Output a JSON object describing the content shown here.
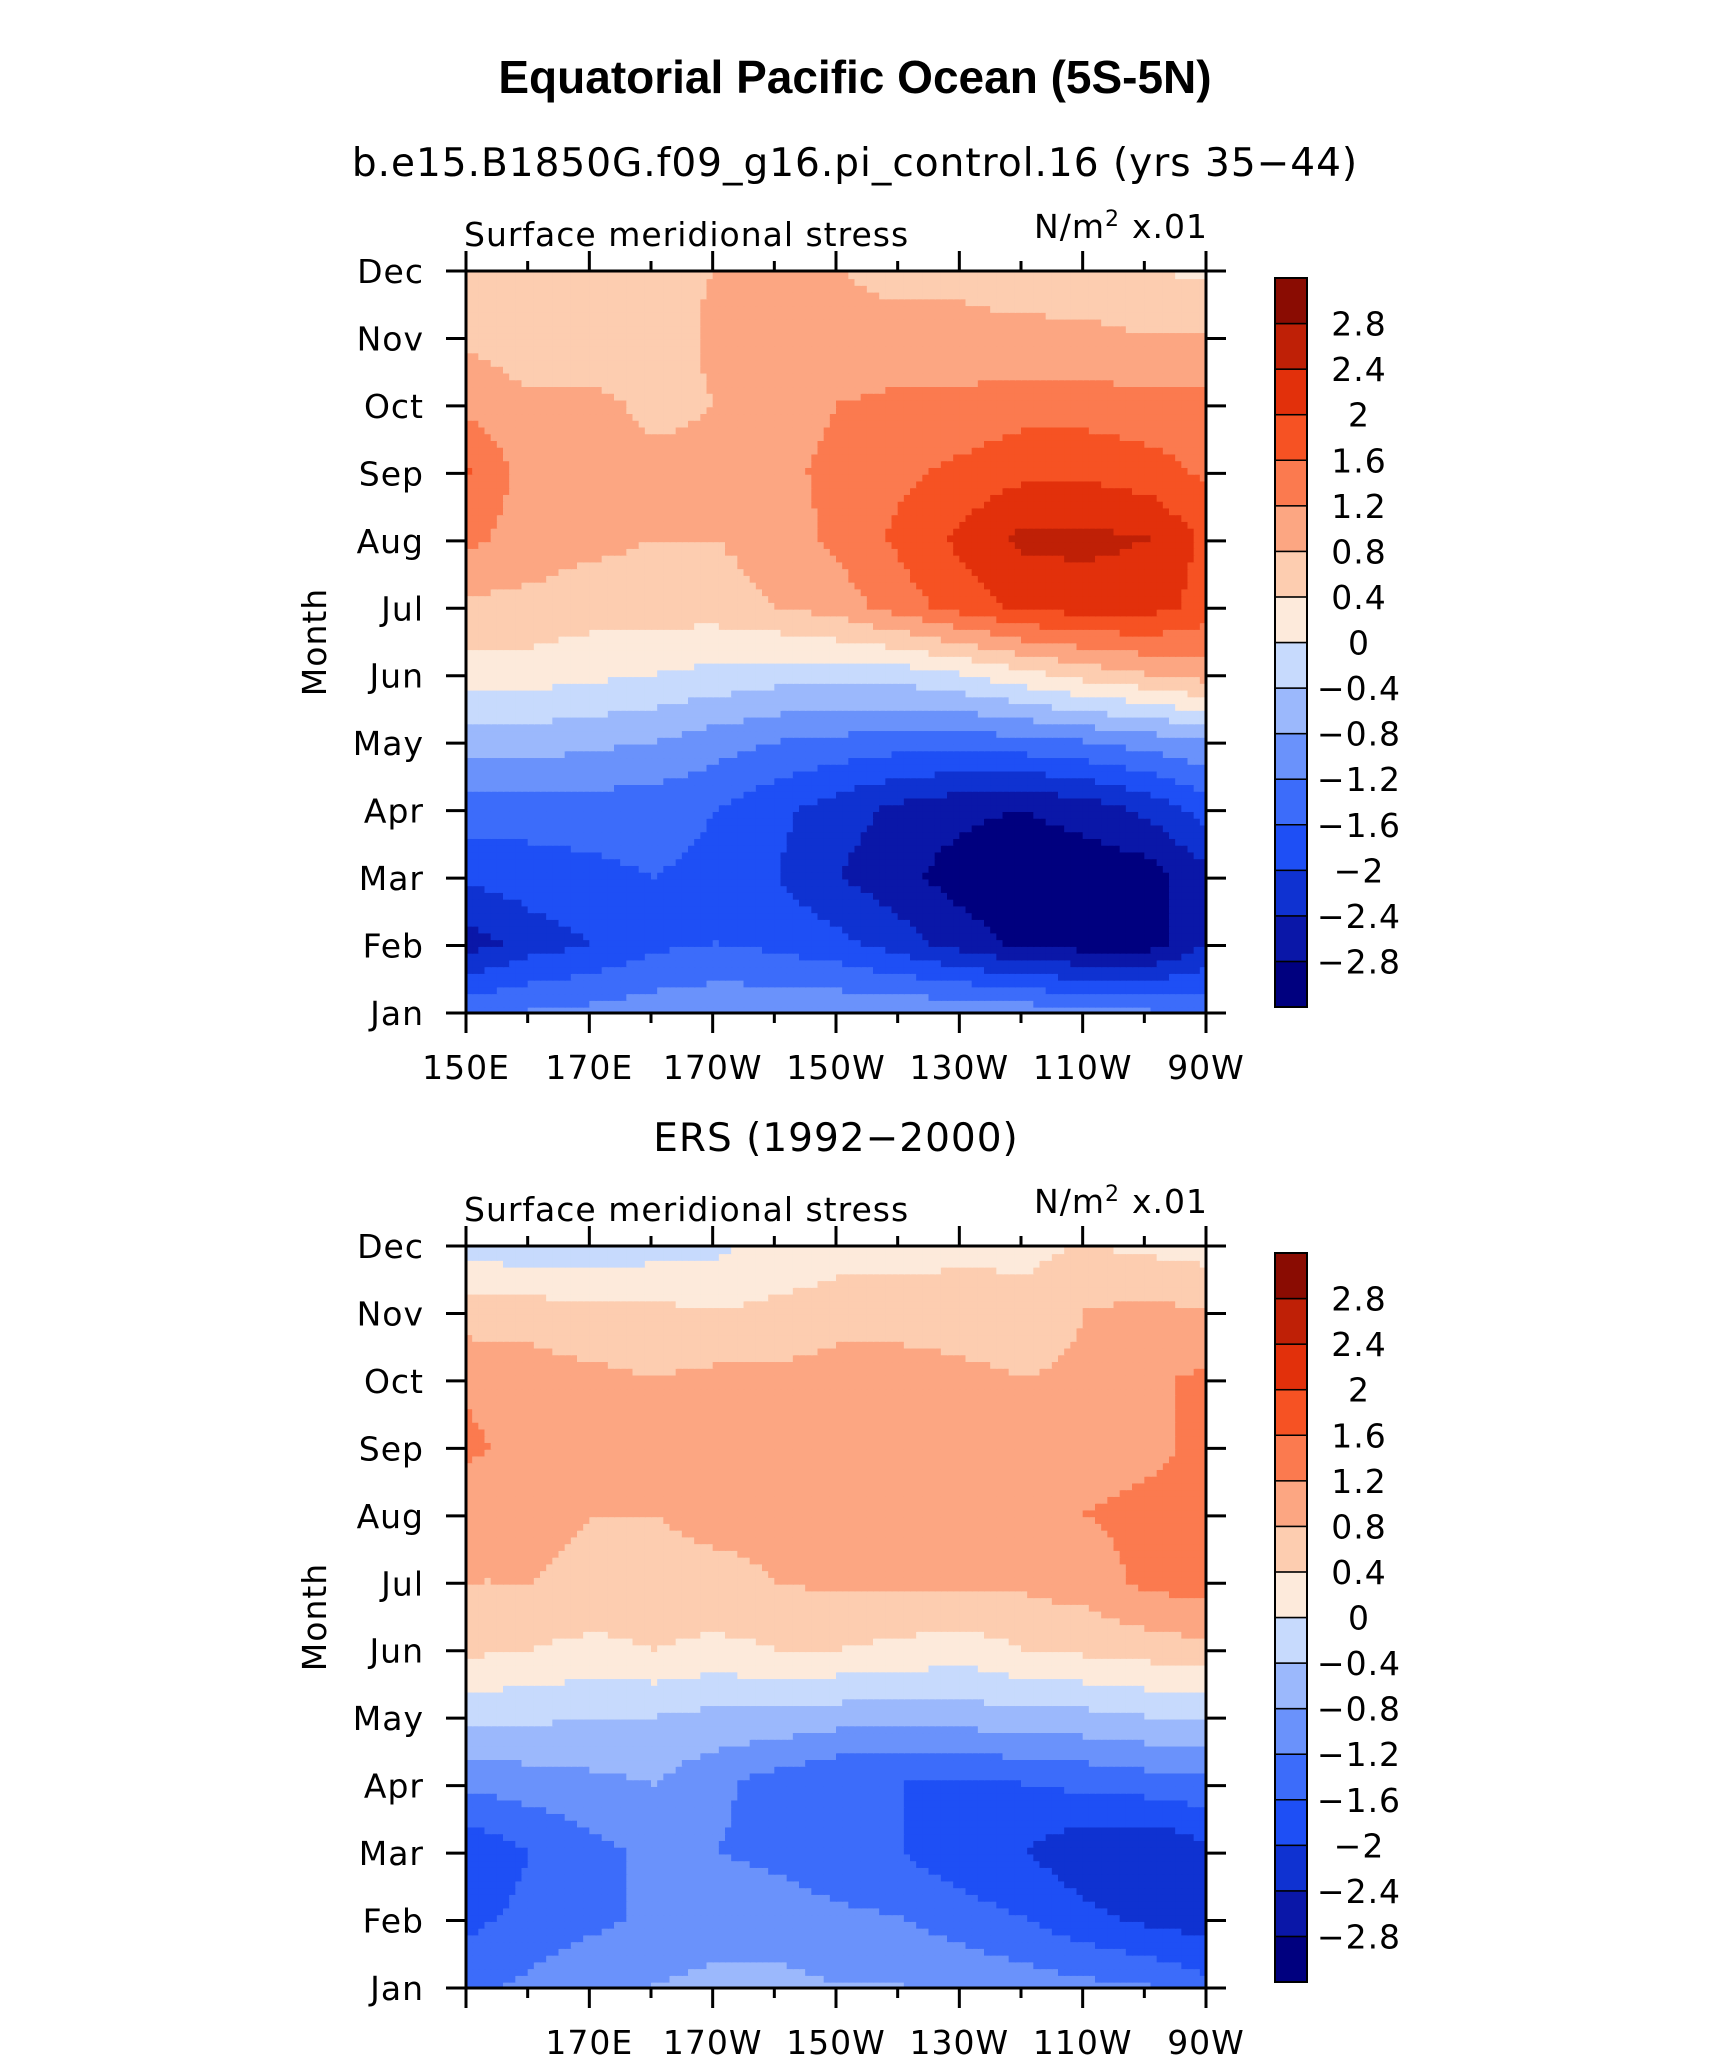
{
  "title": "Equatorial Pacific Ocean (5S-5N)",
  "colorbar": {
    "colors": [
      "#00007f",
      "#0a17a8",
      "#0f32d1",
      "#1e4ff5",
      "#3c6cfa",
      "#6a92fb",
      "#9bb8fc",
      "#c7dafd",
      "#fdeadb",
      "#fdcdb0",
      "#fca682",
      "#fb7a4f",
      "#f65223",
      "#e2300b",
      "#bf2006",
      "#8a0c02"
    ],
    "labels": [
      "-2.8",
      "-2.4",
      "-2",
      "-1.6",
      "-1.2",
      "-0.8",
      "-0.4",
      "0",
      "0.4",
      "0.8",
      "1.2",
      "1.6",
      "2",
      "2.4",
      "2.8"
    ]
  },
  "panels": [
    {
      "subtitle": "b.e15.B1850G.f09_g16.pi_control.16 (yrs 35−44)",
      "left_label": "Surface meridional stress",
      "units_base": "N/m",
      "units_exp": "2",
      "units_scale": "x.01",
      "ylabel": "Month",
      "xtick_labels": [
        "150E",
        "170E",
        "170W",
        "150W",
        "130W",
        "110W",
        "90W"
      ]
    },
    {
      "subtitle": "ERS (1992−2000)",
      "left_label": "Surface meridional stress",
      "units_base": "N/m",
      "units_exp": "2",
      "units_scale": "x.01",
      "ylabel": "Month",
      "xtick_labels": [
        "",
        "170E",
        "170W",
        "150W",
        "130W",
        "110W",
        "90W"
      ]
    }
  ],
  "chart_data": [
    {
      "type": "heatmap",
      "title": "Equatorial Pacific Ocean (5S-5N)",
      "subtitle": "b.e15.B1850G.f09_g16.pi_control.16 (yrs 35−44)",
      "xlabel": "",
      "ylabel": "Month",
      "x_ticks": [
        "150E",
        "170E",
        "170W",
        "150W",
        "130W",
        "110W",
        "90W"
      ],
      "x": [
        150,
        160,
        170,
        180,
        190,
        200,
        210,
        220,
        230,
        240,
        250,
        260,
        270
      ],
      "y": [
        "Jan",
        "Feb",
        "Mar",
        "Apr",
        "May",
        "Jun",
        "Jul",
        "Aug",
        "Sep",
        "Oct",
        "Nov",
        "Dec"
      ],
      "levels": [
        -2.8,
        -2.4,
        -2,
        -1.6,
        -1.2,
        -0.8,
        -0.4,
        0,
        0.4,
        0.8,
        1.2,
        1.6,
        2,
        2.4,
        2.8
      ],
      "z": [
        [
          -1.3,
          -1.2,
          -1.1,
          -1.0,
          -0.9,
          -0.9,
          -0.9,
          -0.9,
          -0.9,
          -1.0,
          -1.1,
          -1.2,
          -1.3
        ],
        [
          -2.6,
          -2.2,
          -2.0,
          -1.7,
          -1.6,
          -1.7,
          -1.9,
          -2.2,
          -2.6,
          -2.9,
          -3.0,
          -3.0,
          -2.4
        ],
        [
          -1.9,
          -1.8,
          -1.7,
          -1.6,
          -1.7,
          -2.0,
          -2.4,
          -2.7,
          -3.0,
          -3.1,
          -3.1,
          -3.0,
          -2.5
        ],
        [
          -1.4,
          -1.4,
          -1.4,
          -1.4,
          -1.6,
          -1.9,
          -2.2,
          -2.5,
          -2.7,
          -2.8,
          -2.6,
          -2.3,
          -1.8
        ],
        [
          -0.6,
          -0.6,
          -0.7,
          -0.8,
          -1.0,
          -1.2,
          -1.3,
          -1.4,
          -1.4,
          -1.3,
          -1.2,
          -1.0,
          -0.8
        ],
        [
          0.2,
          0.2,
          0.1,
          0.0,
          -0.1,
          -0.2,
          -0.2,
          -0.2,
          0.0,
          0.3,
          0.6,
          0.8,
          1.0
        ],
        [
          0.7,
          0.7,
          0.6,
          0.6,
          0.6,
          0.8,
          1.0,
          1.4,
          1.8,
          2.1,
          2.2,
          2.2,
          1.8
        ],
        [
          1.3,
          1.0,
          0.9,
          0.8,
          0.8,
          1.0,
          1.3,
          1.7,
          2.1,
          2.5,
          2.5,
          2.4,
          1.9
        ],
        [
          1.6,
          1.0,
          0.9,
          0.9,
          0.9,
          1.1,
          1.3,
          1.5,
          1.7,
          1.9,
          1.9,
          1.8,
          1.5
        ],
        [
          1.1,
          0.9,
          0.9,
          0.7,
          0.8,
          1.0,
          1.2,
          1.3,
          1.3,
          1.4,
          1.4,
          1.3,
          1.3
        ],
        [
          0.7,
          0.5,
          0.5,
          0.5,
          0.9,
          0.9,
          0.9,
          0.9,
          0.9,
          0.9,
          0.9,
          0.8,
          0.8
        ],
        [
          0.4,
          0.6,
          0.6,
          0.7,
          0.8,
          0.8,
          0.8,
          0.7,
          0.7,
          0.6,
          0.5,
          0.4,
          0.3
        ]
      ]
    },
    {
      "type": "heatmap",
      "title": "",
      "subtitle": "ERS (1992−2000)",
      "xlabel": "",
      "ylabel": "Month",
      "x_ticks": [
        "170E",
        "170W",
        "150W",
        "130W",
        "110W",
        "90W"
      ],
      "x": [
        150,
        160,
        170,
        180,
        190,
        200,
        210,
        220,
        230,
        240,
        250,
        260,
        270
      ],
      "y": [
        "Jan",
        "Feb",
        "Mar",
        "Apr",
        "May",
        "Jun",
        "Jul",
        "Aug",
        "Sep",
        "Oct",
        "Nov",
        "Dec"
      ],
      "levels": [
        -2.8,
        -2.4,
        -2,
        -1.6,
        -1.2,
        -0.8,
        -0.4,
        0,
        0.4,
        0.8,
        1.2,
        1.6,
        2,
        2.4,
        2.8
      ],
      "z": [
        [
          -1.3,
          -1.1,
          -0.9,
          -0.8,
          -0.7,
          -0.7,
          -0.8,
          -0.8,
          -0.9,
          -1.0,
          -1.1,
          -1.2,
          -1.5
        ],
        [
          -1.7,
          -1.5,
          -1.3,
          -1.1,
          -1.0,
          -1.0,
          -1.1,
          -1.2,
          -1.4,
          -1.6,
          -1.9,
          -2.1,
          -2.2
        ],
        [
          -1.9,
          -1.6,
          -1.3,
          -1.1,
          -1.2,
          -1.3,
          -1.5,
          -1.6,
          -1.9,
          -2.0,
          -2.3,
          -2.4,
          -2.1
        ],
        [
          -1.1,
          -1.0,
          -0.9,
          -0.8,
          -1.1,
          -1.4,
          -1.6,
          -1.6,
          -1.7,
          -1.6,
          -1.5,
          -1.4,
          -1.3
        ],
        [
          -0.3,
          -0.3,
          -0.4,
          -0.4,
          -0.5,
          -0.5,
          -0.6,
          -0.6,
          -0.6,
          -0.5,
          -0.5,
          -0.4,
          -0.3
        ],
        [
          0.5,
          0.4,
          0.3,
          0.4,
          0.3,
          0.4,
          0.4,
          0.3,
          0.2,
          0.4,
          0.5,
          0.6,
          0.7
        ],
        [
          0.8,
          0.8,
          0.7,
          0.7,
          0.7,
          0.8,
          0.9,
          0.9,
          0.9,
          0.9,
          1.0,
          1.3,
          1.4
        ],
        [
          0.9,
          0.9,
          0.8,
          0.8,
          0.9,
          0.9,
          1.0,
          1.0,
          1.0,
          1.0,
          1.2,
          1.3,
          1.4
        ],
        [
          1.3,
          1.0,
          0.8,
          0.9,
          1.0,
          1.0,
          1.0,
          0.9,
          0.8,
          0.9,
          1.0,
          1.1,
          1.3
        ],
        [
          1.1,
          1.0,
          0.9,
          0.8,
          0.9,
          0.9,
          1.0,
          1.0,
          0.9,
          0.8,
          0.9,
          1.1,
          1.3
        ],
        [
          0.6,
          0.6,
          0.5,
          0.5,
          0.4,
          0.5,
          0.6,
          0.6,
          0.6,
          0.5,
          0.8,
          0.9,
          0.8
        ],
        [
          -0.2,
          -0.3,
          -0.3,
          -0.2,
          -0.1,
          0.1,
          0.2,
          0.2,
          0.3,
          0.3,
          0.4,
          0.3,
          0.2
        ]
      ]
    }
  ]
}
